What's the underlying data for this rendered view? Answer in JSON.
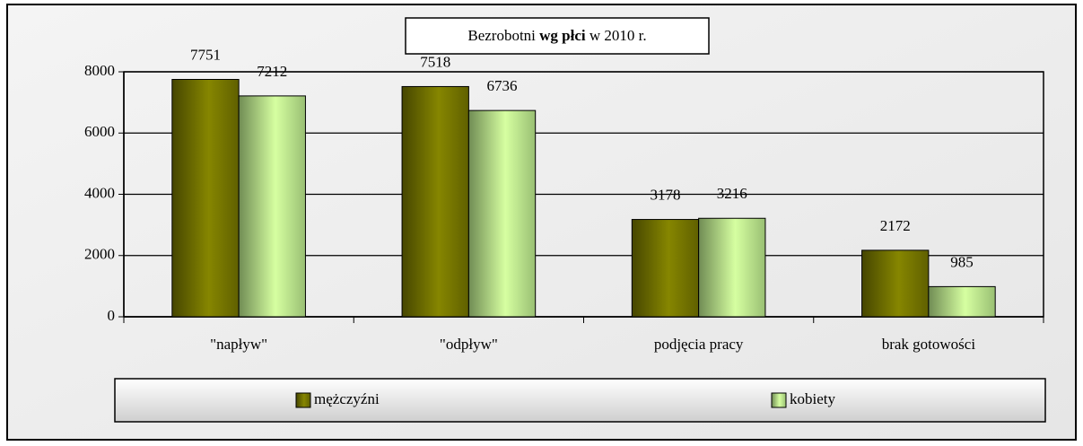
{
  "chart_data": {
    "type": "bar",
    "title": [
      "Bezrobotni",
      "wg płci",
      "w 2010 r."
    ],
    "categories": [
      "\"napływ\"",
      "\"odpływ\"",
      "podjęcia pracy",
      "brak gotowości"
    ],
    "series": [
      {
        "name": "mężczyźni",
        "color": "#808000",
        "values": [
          7751,
          7518,
          3178,
          2172
        ]
      },
      {
        "name": "kobiety",
        "color": "#ccff99",
        "values": [
          7212,
          6736,
          3216,
          985
        ]
      }
    ],
    "ylim": [
      0,
      8000
    ],
    "yticks": [
      0,
      2000,
      4000,
      6000,
      8000
    ],
    "grid": true,
    "legend": "bottom"
  }
}
